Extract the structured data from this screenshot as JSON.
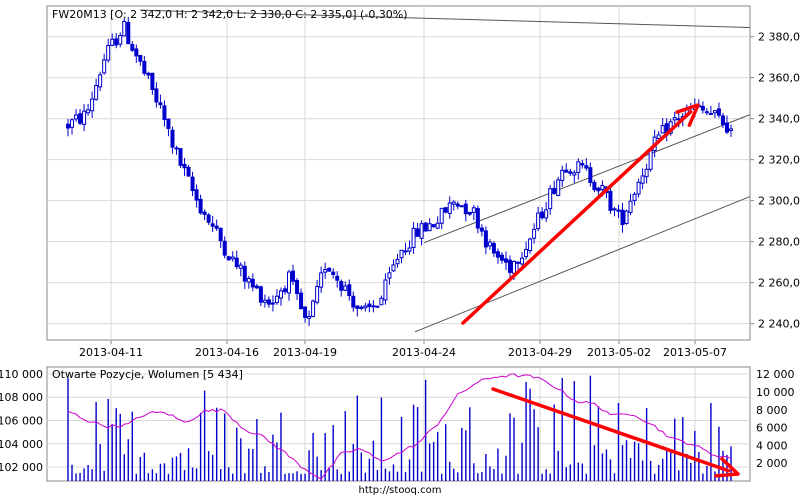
{
  "source_label": "http://stooq.com",
  "chart_data": [
    {
      "type": "candlestick",
      "title": "FW20M13 [O: 2 342,0  H: 2 342,0  L: 2 330,0  C: 2 335,0] (-0,30%)",
      "ylim": [
        2232,
        2395
      ],
      "y_ticks": [
        "2 240,0",
        "2 260,0",
        "2 280,0",
        "2 300,0",
        "2 320,0",
        "2 340,0",
        "2 360,0",
        "2 380,0"
      ],
      "y_tick_values": [
        2240,
        2260,
        2280,
        2300,
        2320,
        2340,
        2360,
        2380
      ],
      "x_tick_labels": [
        "2013-04-11",
        "2013-04-16",
        "2013-04-19",
        "2013-04-24",
        "2013-04-29",
        "2013-05-02",
        "2013-05-07"
      ],
      "grid": true,
      "candle_color": "#0000cc",
      "overlay_colors": {
        "trendlines": "#555555",
        "arrow": "#ff0000"
      },
      "key_prices": [
        2337,
        2342,
        2370,
        2385,
        2365,
        2345,
        2320,
        2300,
        2285,
        2270,
        2258,
        2250,
        2262,
        2238,
        2270,
        2258,
        2244,
        2252,
        2275,
        2285,
        2290,
        2300,
        2295,
        2275,
        2268,
        2280,
        2300,
        2318,
        2315,
        2305,
        2290,
        2310,
        2330,
        2340,
        2345,
        2342,
        2335
      ]
    },
    {
      "type": "bar+line",
      "title": "Otwarte Pozycje, Wolumen [5 434]",
      "left_axis_ticks": [
        "102 000",
        "104 000",
        "106 000",
        "108 000",
        "110 000"
      ],
      "left_axis_values": [
        102000,
        104000,
        106000,
        108000,
        110000
      ],
      "left_axis_range": [
        100800,
        110600
      ],
      "right_axis_ticks": [
        "2 000",
        "4 000",
        "6 000",
        "8 000",
        "10 000",
        "12 000"
      ],
      "right_axis_values": [
        2000,
        4000,
        6000,
        8000,
        10000,
        12000
      ],
      "right_axis_range": [
        0,
        12800
      ],
      "series": [
        {
          "type": "bar",
          "axis": "right",
          "color": "#0000cc"
        },
        {
          "type": "line",
          "axis": "left",
          "color": "#cc00cc"
        }
      ],
      "open_interest_key": [
        106800,
        106000,
        105500,
        105600,
        106600,
        106700,
        105800,
        106800,
        106900,
        105300,
        104600,
        103400,
        102000,
        101000,
        103100,
        103600,
        102500,
        103200,
        104100,
        105800,
        108200,
        109300,
        109800,
        109900,
        109700,
        108900,
        107700,
        107400,
        106400,
        106600,
        105600,
        104400,
        104000,
        103100,
        102800
      ]
    }
  ]
}
